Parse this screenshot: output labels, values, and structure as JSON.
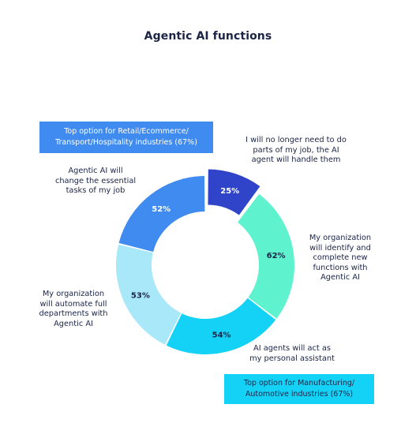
{
  "chart_data": {
    "type": "pie",
    "title": "Agentic AI functions",
    "categories": [
      "I will no longer need to do parts of my job, the AI agent will handle them",
      "My organization will identify and complete new functions with Agentic AI",
      "AI agents will act as my personal assistant",
      "My organization will automate full departments with Agentic AI",
      "Agentic AI will change the essential tasks of my job"
    ],
    "values": [
      25,
      62,
      54,
      53,
      52
    ],
    "value_labels": [
      "25%",
      "62%",
      "54%",
      "53%",
      "52%"
    ],
    "label_lines": [
      [
        "I will no longer need to do",
        "parts of my job, the AI",
        "agent will handle them"
      ],
      [
        "My organization",
        "will identify and",
        "complete new",
        "functions with",
        "Agentic AI"
      ],
      [
        "AI agents will act as",
        "my personal assistant"
      ],
      [
        "My organization",
        "will automate full",
        "departments with",
        "Agentic AI"
      ],
      [
        "Agentic AI will",
        "change the essential",
        "tasks of my job"
      ]
    ],
    "colors": [
      "#2f44c8",
      "#5ef2cf",
      "#14d2f5",
      "#a8e8f8",
      "#3f8bef"
    ],
    "highlighted_index": 0,
    "style": "donut"
  },
  "callouts": {
    "top": {
      "line1": "Top option for Retail/Ecommerce/",
      "line2": "Transport/Hospitality industries (67%)",
      "color": "#3f8bef"
    },
    "bottom": {
      "line1": "Top option for Manufacturing/",
      "line2": "Automotive industries (67%)",
      "color": "#14d2f5"
    }
  }
}
